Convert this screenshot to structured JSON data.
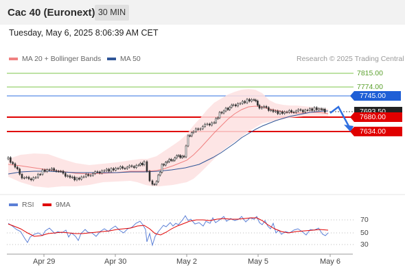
{
  "instrument": "Cac 40 (Euronext)",
  "timeframe": "30 MIN",
  "datetime": "Tuesday, May 6, 2025 8:06:39 AM CET",
  "legend": [
    {
      "label": "MA 20 + Bollinger Bands",
      "color": "#f08080"
    },
    {
      "label": "MA 50",
      "color": "#2f5597"
    }
  ],
  "credit": "Research © 2025 Trading Central",
  "levels": [
    {
      "value": "7815.00",
      "color": "#5aa02c",
      "kind": "resistance"
    },
    {
      "value": "7774.00",
      "color": "#5aa02c",
      "kind": "resistance"
    },
    {
      "value": "7745.00",
      "color": "#1f5fd6",
      "kind": "pivot"
    },
    {
      "value": "7680.00",
      "color": "#e00000",
      "kind": "support"
    },
    {
      "value": "7634.00",
      "color": "#e00000",
      "kind": "support"
    }
  ],
  "last_price_partial": "7693.50",
  "indicator_legend": [
    {
      "label": "RSI",
      "color": "#5b7fd6"
    },
    {
      "label": "9MA",
      "color": "#e00000"
    }
  ],
  "rsi_levels": [
    "70",
    "50",
    "30"
  ],
  "x_labels": [
    "Apr 29",
    "Apr 30",
    "May 2",
    "May 5",
    "May 6"
  ]
}
